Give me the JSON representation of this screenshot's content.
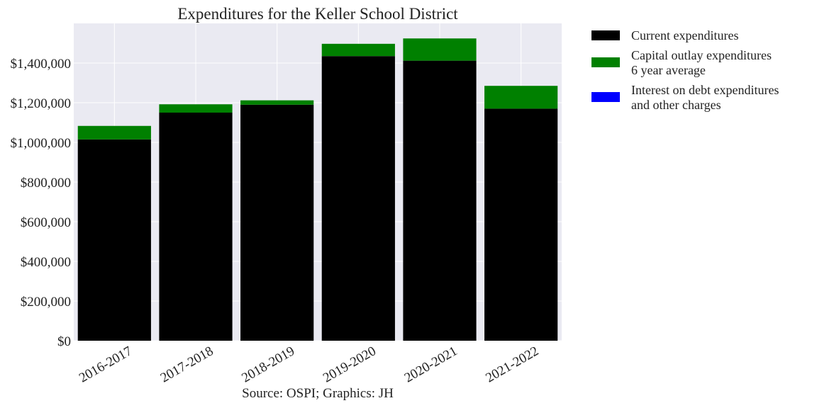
{
  "chart_data": {
    "type": "bar",
    "stacked": true,
    "title": "Expenditures for the Keller School District",
    "source_note": "Source: OSPI; Graphics: JH",
    "categories": [
      "2016-2017",
      "2017-2018",
      "2018-2019",
      "2019-2020",
      "2020-2021",
      "2021-2022"
    ],
    "series": [
      {
        "name": "Current expenditures",
        "color": "#000000",
        "values": [
          1015000,
          1150000,
          1190000,
          1435000,
          1412000,
          1170000
        ]
      },
      {
        "name": "Capital outlay expenditures\n6 year average",
        "color": "#008000",
        "values": [
          68000,
          42000,
          22000,
          62000,
          112000,
          115000
        ]
      },
      {
        "name": "Interest on debt expenditures\nand other charges",
        "color": "#0000ff",
        "values": [
          0,
          0,
          0,
          0,
          0,
          0
        ]
      }
    ],
    "ylim": [
      0,
      1600000
    ],
    "yticks": [
      0,
      200000,
      400000,
      600000,
      800000,
      1000000,
      1200000,
      1400000
    ],
    "ytick_labels": [
      "$0",
      "$200,000",
      "$400,000",
      "$600,000",
      "$800,000",
      "$1,000,000",
      "$1,200,000",
      "$1,400,000"
    ],
    "xlabel": "",
    "ylabel": "",
    "grid": true,
    "legend_position": "outside-right-top",
    "colors": {
      "plot_background": "#eaeaf2",
      "grid": "#ffffff"
    }
  }
}
